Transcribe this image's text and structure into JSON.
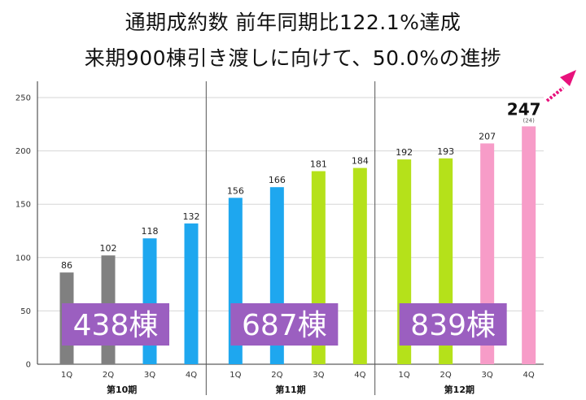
{
  "titles": {
    "line1": "通期成約数 前年同期比122.1%達成",
    "line2": "来期900棟引き渡しに向けて、50.0%の進捗"
  },
  "chart_data": {
    "type": "bar",
    "ylim": [
      0,
      250
    ],
    "yticks": [
      0,
      50,
      100,
      150,
      200,
      250
    ],
    "grid": true,
    "periods": [
      {
        "label": "第10期",
        "total_label": "438棟",
        "bars": [
          {
            "quarter": "1Q",
            "value": 86,
            "color": "#808080"
          },
          {
            "quarter": "2Q",
            "value": 102,
            "color": "#808080"
          },
          {
            "quarter": "3Q",
            "value": 118,
            "color": "#1ea7ef"
          },
          {
            "quarter": "4Q",
            "value": 132,
            "color": "#1ea7ef"
          }
        ]
      },
      {
        "label": "第11期",
        "total_label": "687棟",
        "bars": [
          {
            "quarter": "1Q",
            "value": 156,
            "color": "#1ea7ef"
          },
          {
            "quarter": "2Q",
            "value": 166,
            "color": "#1ea7ef"
          },
          {
            "quarter": "3Q",
            "value": 181,
            "color": "#b5e11a"
          },
          {
            "quarter": "4Q",
            "value": 184,
            "color": "#b5e11a"
          }
        ]
      },
      {
        "label": "第12期",
        "total_label": "839棟",
        "bars": [
          {
            "quarter": "1Q",
            "value": 192,
            "color": "#b5e11a"
          },
          {
            "quarter": "2Q",
            "value": 193,
            "color": "#b5e11a"
          },
          {
            "quarter": "3Q",
            "value": 207,
            "color": "#f79cc8"
          },
          {
            "quarter": "4Q",
            "value": 223,
            "color": "#f79cc8",
            "label": "247",
            "sublabel": "(24)"
          }
        ]
      }
    ],
    "total_box_color": "#9b5fc0",
    "arrow_color": "#e8127c"
  }
}
